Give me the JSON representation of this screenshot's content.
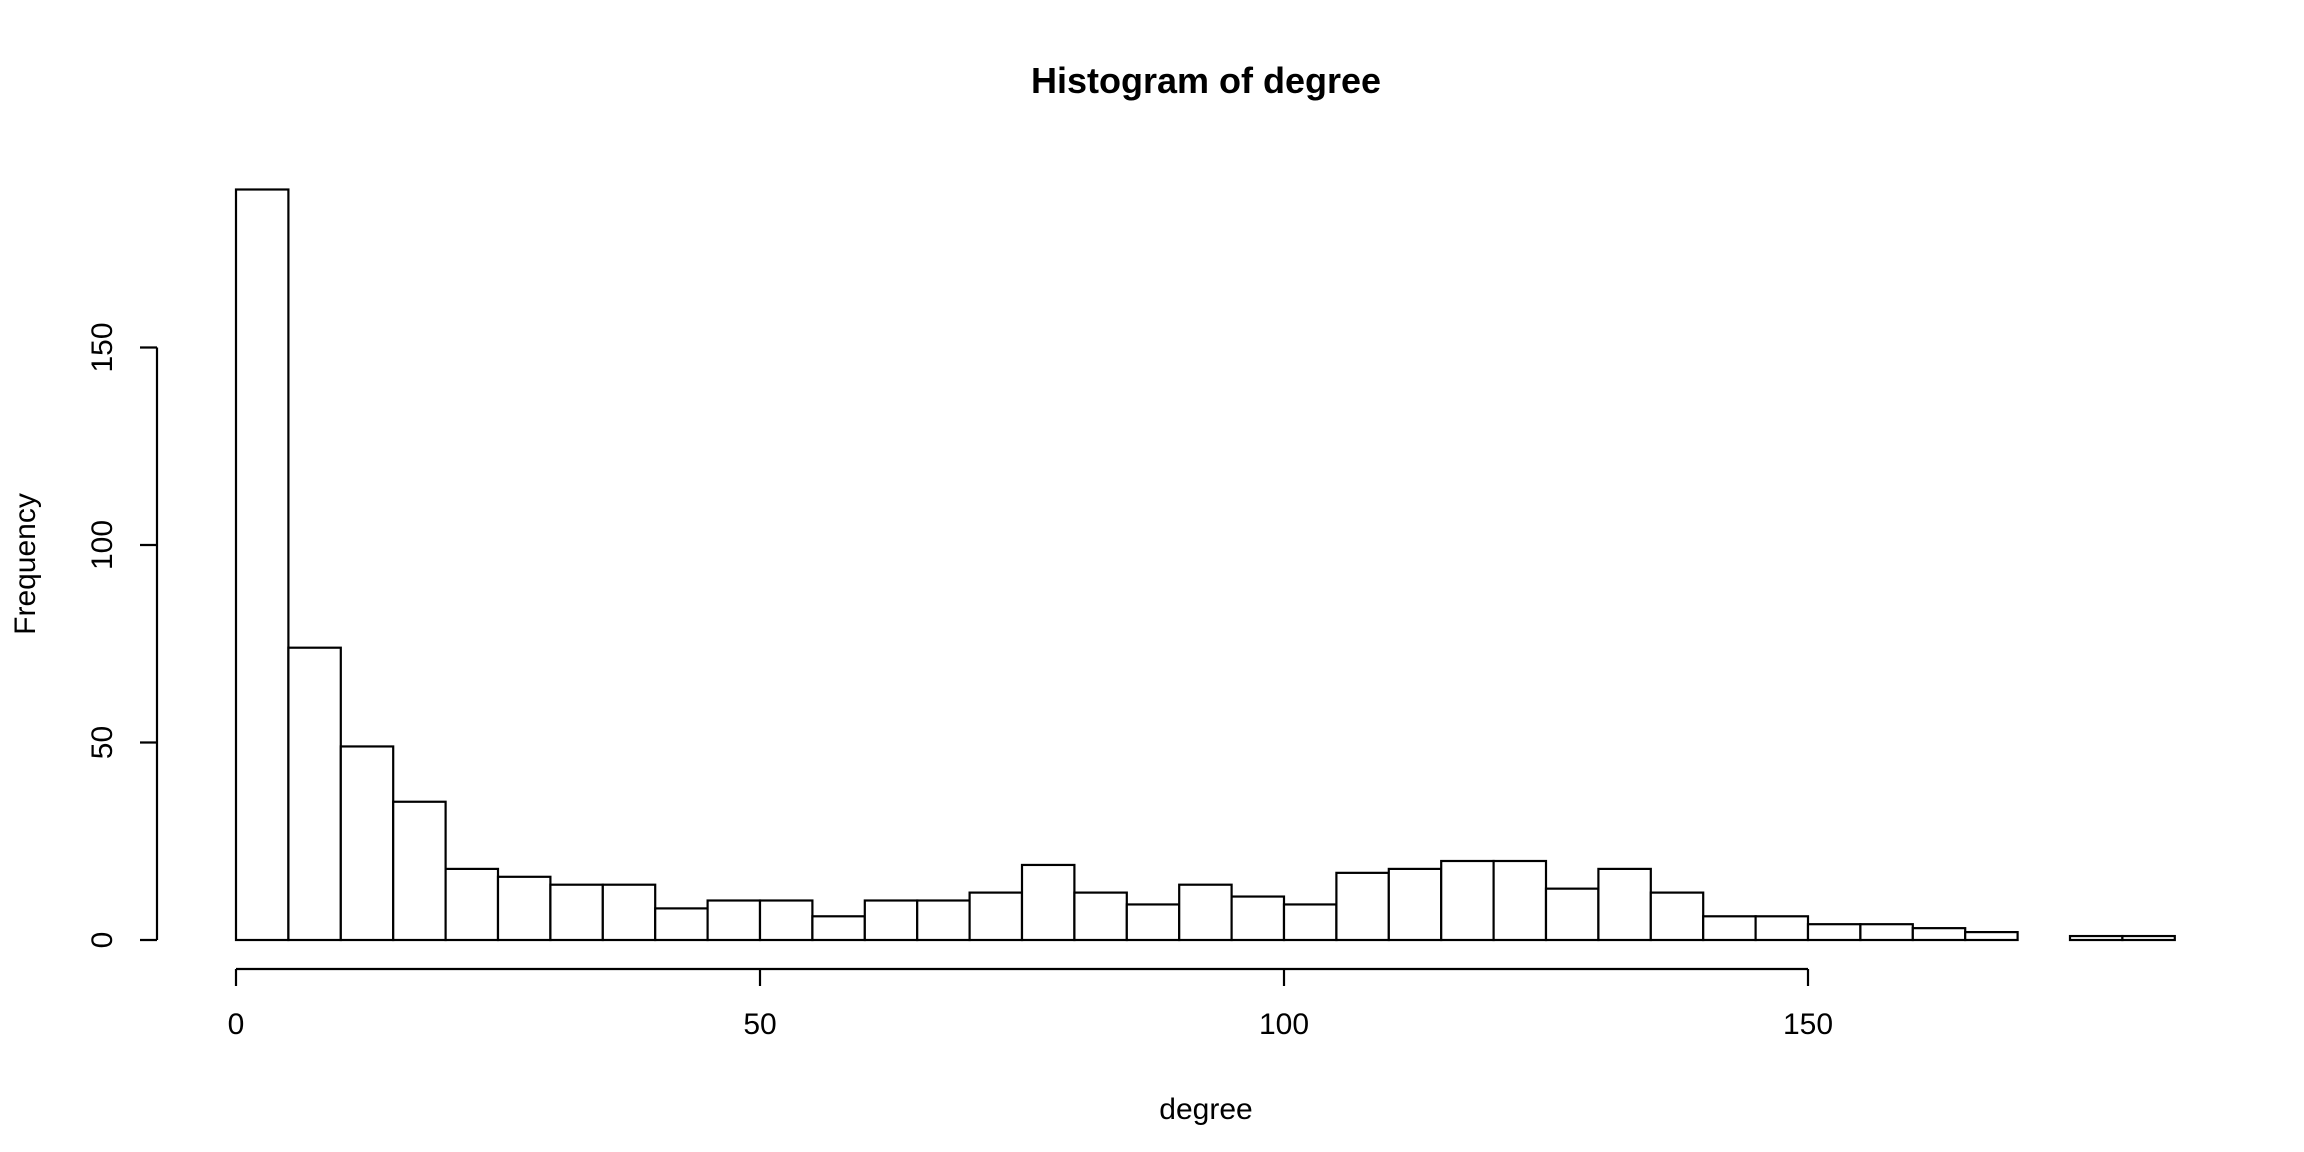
{
  "chart_data": {
    "type": "bar",
    "subtype": "histogram",
    "title": "Histogram of degree",
    "xlabel": "degree",
    "ylabel": "Frequency",
    "xlim": [
      0,
      185
    ],
    "ylim": [
      0,
      190
    ],
    "x_ticks": [
      0,
      50,
      100,
      150
    ],
    "y_ticks": [
      0,
      50,
      100,
      150
    ],
    "grid": false,
    "legend": "none",
    "bar_fill": "#ffffff",
    "bar_stroke": "#000000",
    "bin_width": 5,
    "bins": [
      {
        "x0": 0,
        "x1": 5,
        "count": 190
      },
      {
        "x0": 5,
        "x1": 10,
        "count": 74
      },
      {
        "x0": 10,
        "x1": 15,
        "count": 49
      },
      {
        "x0": 15,
        "x1": 20,
        "count": 35
      },
      {
        "x0": 20,
        "x1": 25,
        "count": 18
      },
      {
        "x0": 25,
        "x1": 30,
        "count": 16
      },
      {
        "x0": 30,
        "x1": 35,
        "count": 14
      },
      {
        "x0": 35,
        "x1": 40,
        "count": 14
      },
      {
        "x0": 40,
        "x1": 45,
        "count": 8
      },
      {
        "x0": 45,
        "x1": 50,
        "count": 10
      },
      {
        "x0": 50,
        "x1": 55,
        "count": 10
      },
      {
        "x0": 55,
        "x1": 60,
        "count": 6
      },
      {
        "x0": 60,
        "x1": 65,
        "count": 10
      },
      {
        "x0": 65,
        "x1": 70,
        "count": 10
      },
      {
        "x0": 70,
        "x1": 75,
        "count": 12
      },
      {
        "x0": 75,
        "x1": 80,
        "count": 19
      },
      {
        "x0": 80,
        "x1": 85,
        "count": 12
      },
      {
        "x0": 85,
        "x1": 90,
        "count": 9
      },
      {
        "x0": 90,
        "x1": 95,
        "count": 14
      },
      {
        "x0": 95,
        "x1": 100,
        "count": 11
      },
      {
        "x0": 100,
        "x1": 105,
        "count": 9
      },
      {
        "x0": 105,
        "x1": 110,
        "count": 17
      },
      {
        "x0": 110,
        "x1": 115,
        "count": 18
      },
      {
        "x0": 115,
        "x1": 120,
        "count": 20
      },
      {
        "x0": 120,
        "x1": 125,
        "count": 20
      },
      {
        "x0": 125,
        "x1": 130,
        "count": 13
      },
      {
        "x0": 130,
        "x1": 135,
        "count": 18
      },
      {
        "x0": 135,
        "x1": 140,
        "count": 12
      },
      {
        "x0": 140,
        "x1": 145,
        "count": 6
      },
      {
        "x0": 145,
        "x1": 150,
        "count": 6
      },
      {
        "x0": 150,
        "x1": 155,
        "count": 4
      },
      {
        "x0": 155,
        "x1": 160,
        "count": 4
      },
      {
        "x0": 160,
        "x1": 165,
        "count": 3
      },
      {
        "x0": 165,
        "x1": 170,
        "count": 2
      },
      {
        "x0": 170,
        "x1": 175,
        "count": 0
      },
      {
        "x0": 175,
        "x1": 180,
        "count": 1
      },
      {
        "x0": 180,
        "x1": 185,
        "count": 1
      }
    ]
  }
}
